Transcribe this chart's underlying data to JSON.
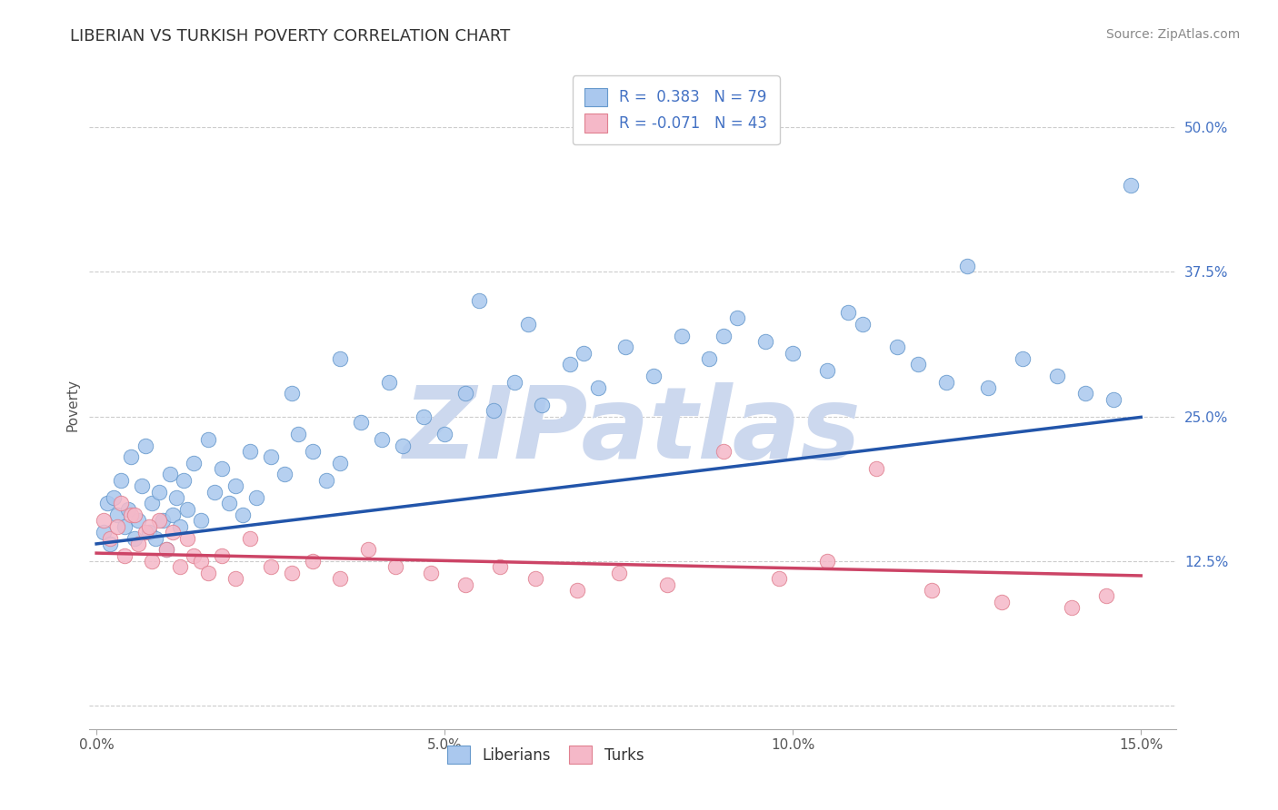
{
  "title": "LIBERIAN VS TURKISH POVERTY CORRELATION CHART",
  "source": "Source: ZipAtlas.com",
  "ylabel": "Poverty",
  "xlabel_vals": [
    0.0,
    5.0,
    10.0,
    15.0
  ],
  "xlim": [
    -0.1,
    15.5
  ],
  "ylim": [
    -2.0,
    54.0
  ],
  "yticks": [
    0.0,
    12.5,
    25.0,
    37.5,
    50.0
  ],
  "ytick_labels": [
    "",
    "12.5%",
    "25.0%",
    "37.5%",
    "50.0%"
  ],
  "blue_color": "#aac8ee",
  "blue_edge": "#6699cc",
  "pink_color": "#f5b8c8",
  "pink_edge": "#e08090",
  "line_blue": "#2255aa",
  "line_pink": "#cc4466",
  "R_blue": 0.383,
  "N_blue": 79,
  "R_pink": -0.071,
  "N_pink": 43,
  "blue_intercept": 14.0,
  "blue_slope": 0.73,
  "pink_intercept": 13.2,
  "pink_slope": -0.13,
  "blue_x": [
    0.1,
    0.15,
    0.2,
    0.25,
    0.3,
    0.35,
    0.4,
    0.45,
    0.5,
    0.55,
    0.6,
    0.65,
    0.7,
    0.75,
    0.8,
    0.85,
    0.9,
    0.95,
    1.0,
    1.05,
    1.1,
    1.15,
    1.2,
    1.25,
    1.3,
    1.4,
    1.5,
    1.6,
    1.7,
    1.8,
    1.9,
    2.0,
    2.1,
    2.2,
    2.3,
    2.5,
    2.7,
    2.9,
    3.1,
    3.3,
    3.5,
    3.8,
    4.1,
    4.4,
    4.7,
    5.0,
    5.3,
    5.7,
    6.0,
    6.4,
    6.8,
    7.2,
    7.6,
    8.0,
    8.4,
    8.8,
    9.2,
    9.6,
    10.0,
    10.5,
    11.0,
    11.5,
    11.8,
    12.2,
    12.8,
    13.3,
    13.8,
    14.2,
    14.6,
    14.85,
    2.8,
    3.5,
    4.2,
    5.5,
    6.2,
    7.0,
    9.0,
    10.8,
    12.5
  ],
  "blue_y": [
    15.0,
    17.5,
    14.0,
    18.0,
    16.5,
    19.5,
    15.5,
    17.0,
    21.5,
    14.5,
    16.0,
    19.0,
    22.5,
    15.0,
    17.5,
    14.5,
    18.5,
    16.0,
    13.5,
    20.0,
    16.5,
    18.0,
    15.5,
    19.5,
    17.0,
    21.0,
    16.0,
    23.0,
    18.5,
    20.5,
    17.5,
    19.0,
    16.5,
    22.0,
    18.0,
    21.5,
    20.0,
    23.5,
    22.0,
    19.5,
    21.0,
    24.5,
    23.0,
    22.5,
    25.0,
    23.5,
    27.0,
    25.5,
    28.0,
    26.0,
    29.5,
    27.5,
    31.0,
    28.5,
    32.0,
    30.0,
    33.5,
    31.5,
    30.5,
    29.0,
    33.0,
    31.0,
    29.5,
    28.0,
    27.5,
    30.0,
    28.5,
    27.0,
    26.5,
    45.0,
    27.0,
    30.0,
    28.0,
    35.0,
    33.0,
    30.5,
    32.0,
    34.0,
    38.0
  ],
  "pink_x": [
    0.1,
    0.2,
    0.3,
    0.4,
    0.5,
    0.6,
    0.7,
    0.8,
    0.9,
    1.0,
    1.1,
    1.2,
    1.3,
    1.4,
    1.5,
    1.6,
    1.8,
    2.0,
    2.2,
    2.5,
    2.8,
    3.1,
    3.5,
    3.9,
    4.3,
    4.8,
    5.3,
    5.8,
    6.3,
    6.9,
    7.5,
    8.2,
    9.0,
    9.8,
    10.5,
    11.2,
    12.0,
    13.0,
    14.0,
    14.5,
    0.35,
    0.55,
    0.75
  ],
  "pink_y": [
    16.0,
    14.5,
    15.5,
    13.0,
    16.5,
    14.0,
    15.0,
    12.5,
    16.0,
    13.5,
    15.0,
    12.0,
    14.5,
    13.0,
    12.5,
    11.5,
    13.0,
    11.0,
    14.5,
    12.0,
    11.5,
    12.5,
    11.0,
    13.5,
    12.0,
    11.5,
    10.5,
    12.0,
    11.0,
    10.0,
    11.5,
    10.5,
    22.0,
    11.0,
    12.5,
    20.5,
    10.0,
    9.0,
    8.5,
    9.5,
    17.5,
    16.5,
    15.5
  ],
  "watermark": "ZIPatlas",
  "watermark_color": "#ccd8ee",
  "background_color": "#ffffff",
  "grid_color": "#cccccc",
  "title_fontsize": 13,
  "axis_label_fontsize": 11,
  "tick_fontsize": 11,
  "legend_fontsize": 12,
  "source_fontsize": 10
}
